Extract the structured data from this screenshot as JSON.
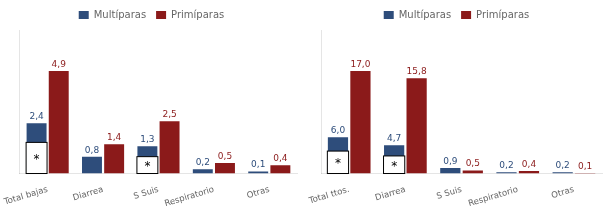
{
  "chart_data": [
    {
      "type": "bar",
      "categories": [
        "Total bajas",
        "Diarrea",
        "S Suis",
        "Respiratorio",
        "Otras"
      ],
      "series": [
        {
          "name": "Multíparas",
          "color": "#2E4D7B",
          "values": [
            2.4,
            0.8,
            1.3,
            0.2,
            0.1
          ],
          "value_labels": [
            "2,4",
            "0,8",
            "1,3",
            "0,2",
            "0,1"
          ]
        },
        {
          "name": "Primíparas",
          "color": "#8B1A1A",
          "values": [
            4.9,
            1.4,
            2.5,
            0.5,
            0.4
          ],
          "value_labels": [
            "4,9",
            "1,4",
            "2,5",
            "0,5",
            "0,4"
          ]
        }
      ],
      "ylim": [
        0,
        6.86
      ],
      "tick_labels": "x",
      "grid": false,
      "legend": "top",
      "data_labels": true,
      "annotations": [
        {
          "text": "*",
          "x": "Total bajas",
          "series": "Multíparas"
        },
        {
          "text": "*",
          "x": "S Suis",
          "series": "Multíparas"
        }
      ]
    },
    {
      "type": "bar",
      "categories": [
        "Total ttos.",
        "Diarrea",
        "S Suis",
        "Respiratorio",
        "Otras"
      ],
      "series": [
        {
          "name": "Multíparas",
          "color": "#2E4D7B",
          "values": [
            6.0,
            4.7,
            0.9,
            0.2,
            0.2
          ],
          "value_labels": [
            "6,0",
            "4,7",
            "0,9",
            "0,2",
            "0,2"
          ]
        },
        {
          "name": "Primíparas",
          "color": "#8B1A1A",
          "values": [
            17.0,
            15.8,
            0.5,
            0.4,
            0.1
          ],
          "value_labels": [
            "17,0",
            "15,8",
            "0,5",
            "0,4",
            "0,1"
          ]
        }
      ],
      "ylim": [
        0,
        23.8
      ],
      "tick_labels": "x",
      "grid": false,
      "legend": "top",
      "data_labels": true,
      "annotations": [
        {
          "text": "*",
          "x": "Total ttos.",
          "series": "Multíparas"
        },
        {
          "text": "*",
          "x": "Diarrea",
          "series": "Multíparas"
        }
      ]
    }
  ]
}
